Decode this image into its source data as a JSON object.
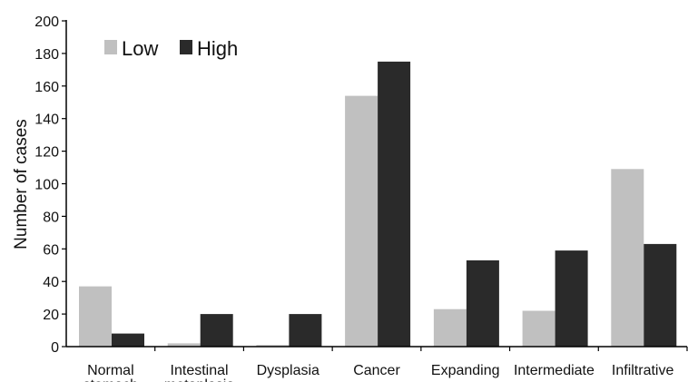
{
  "chart_data": {
    "type": "bar",
    "categories": [
      [
        "Normal",
        "stomach"
      ],
      [
        "Intestinal",
        "metaplasia"
      ],
      [
        "Dysplasia"
      ],
      [
        "Cancer"
      ],
      [
        "Expanding"
      ],
      [
        "Intermediate"
      ],
      [
        "Infiltrative"
      ]
    ],
    "series": [
      {
        "name": "Low",
        "color": "#c0c0c0",
        "values": [
          37,
          2,
          1,
          154,
          23,
          22,
          109
        ]
      },
      {
        "name": "High",
        "color": "#2a2a2a",
        "values": [
          8,
          20,
          20,
          175,
          53,
          59,
          63
        ]
      }
    ],
    "ylabel": "Number of cases",
    "xlabel": "",
    "ylim": [
      0,
      200
    ],
    "yticks": [
      0,
      20,
      40,
      60,
      80,
      100,
      120,
      140,
      160,
      180,
      200
    ],
    "grid": false,
    "legend_position": "top-left"
  }
}
